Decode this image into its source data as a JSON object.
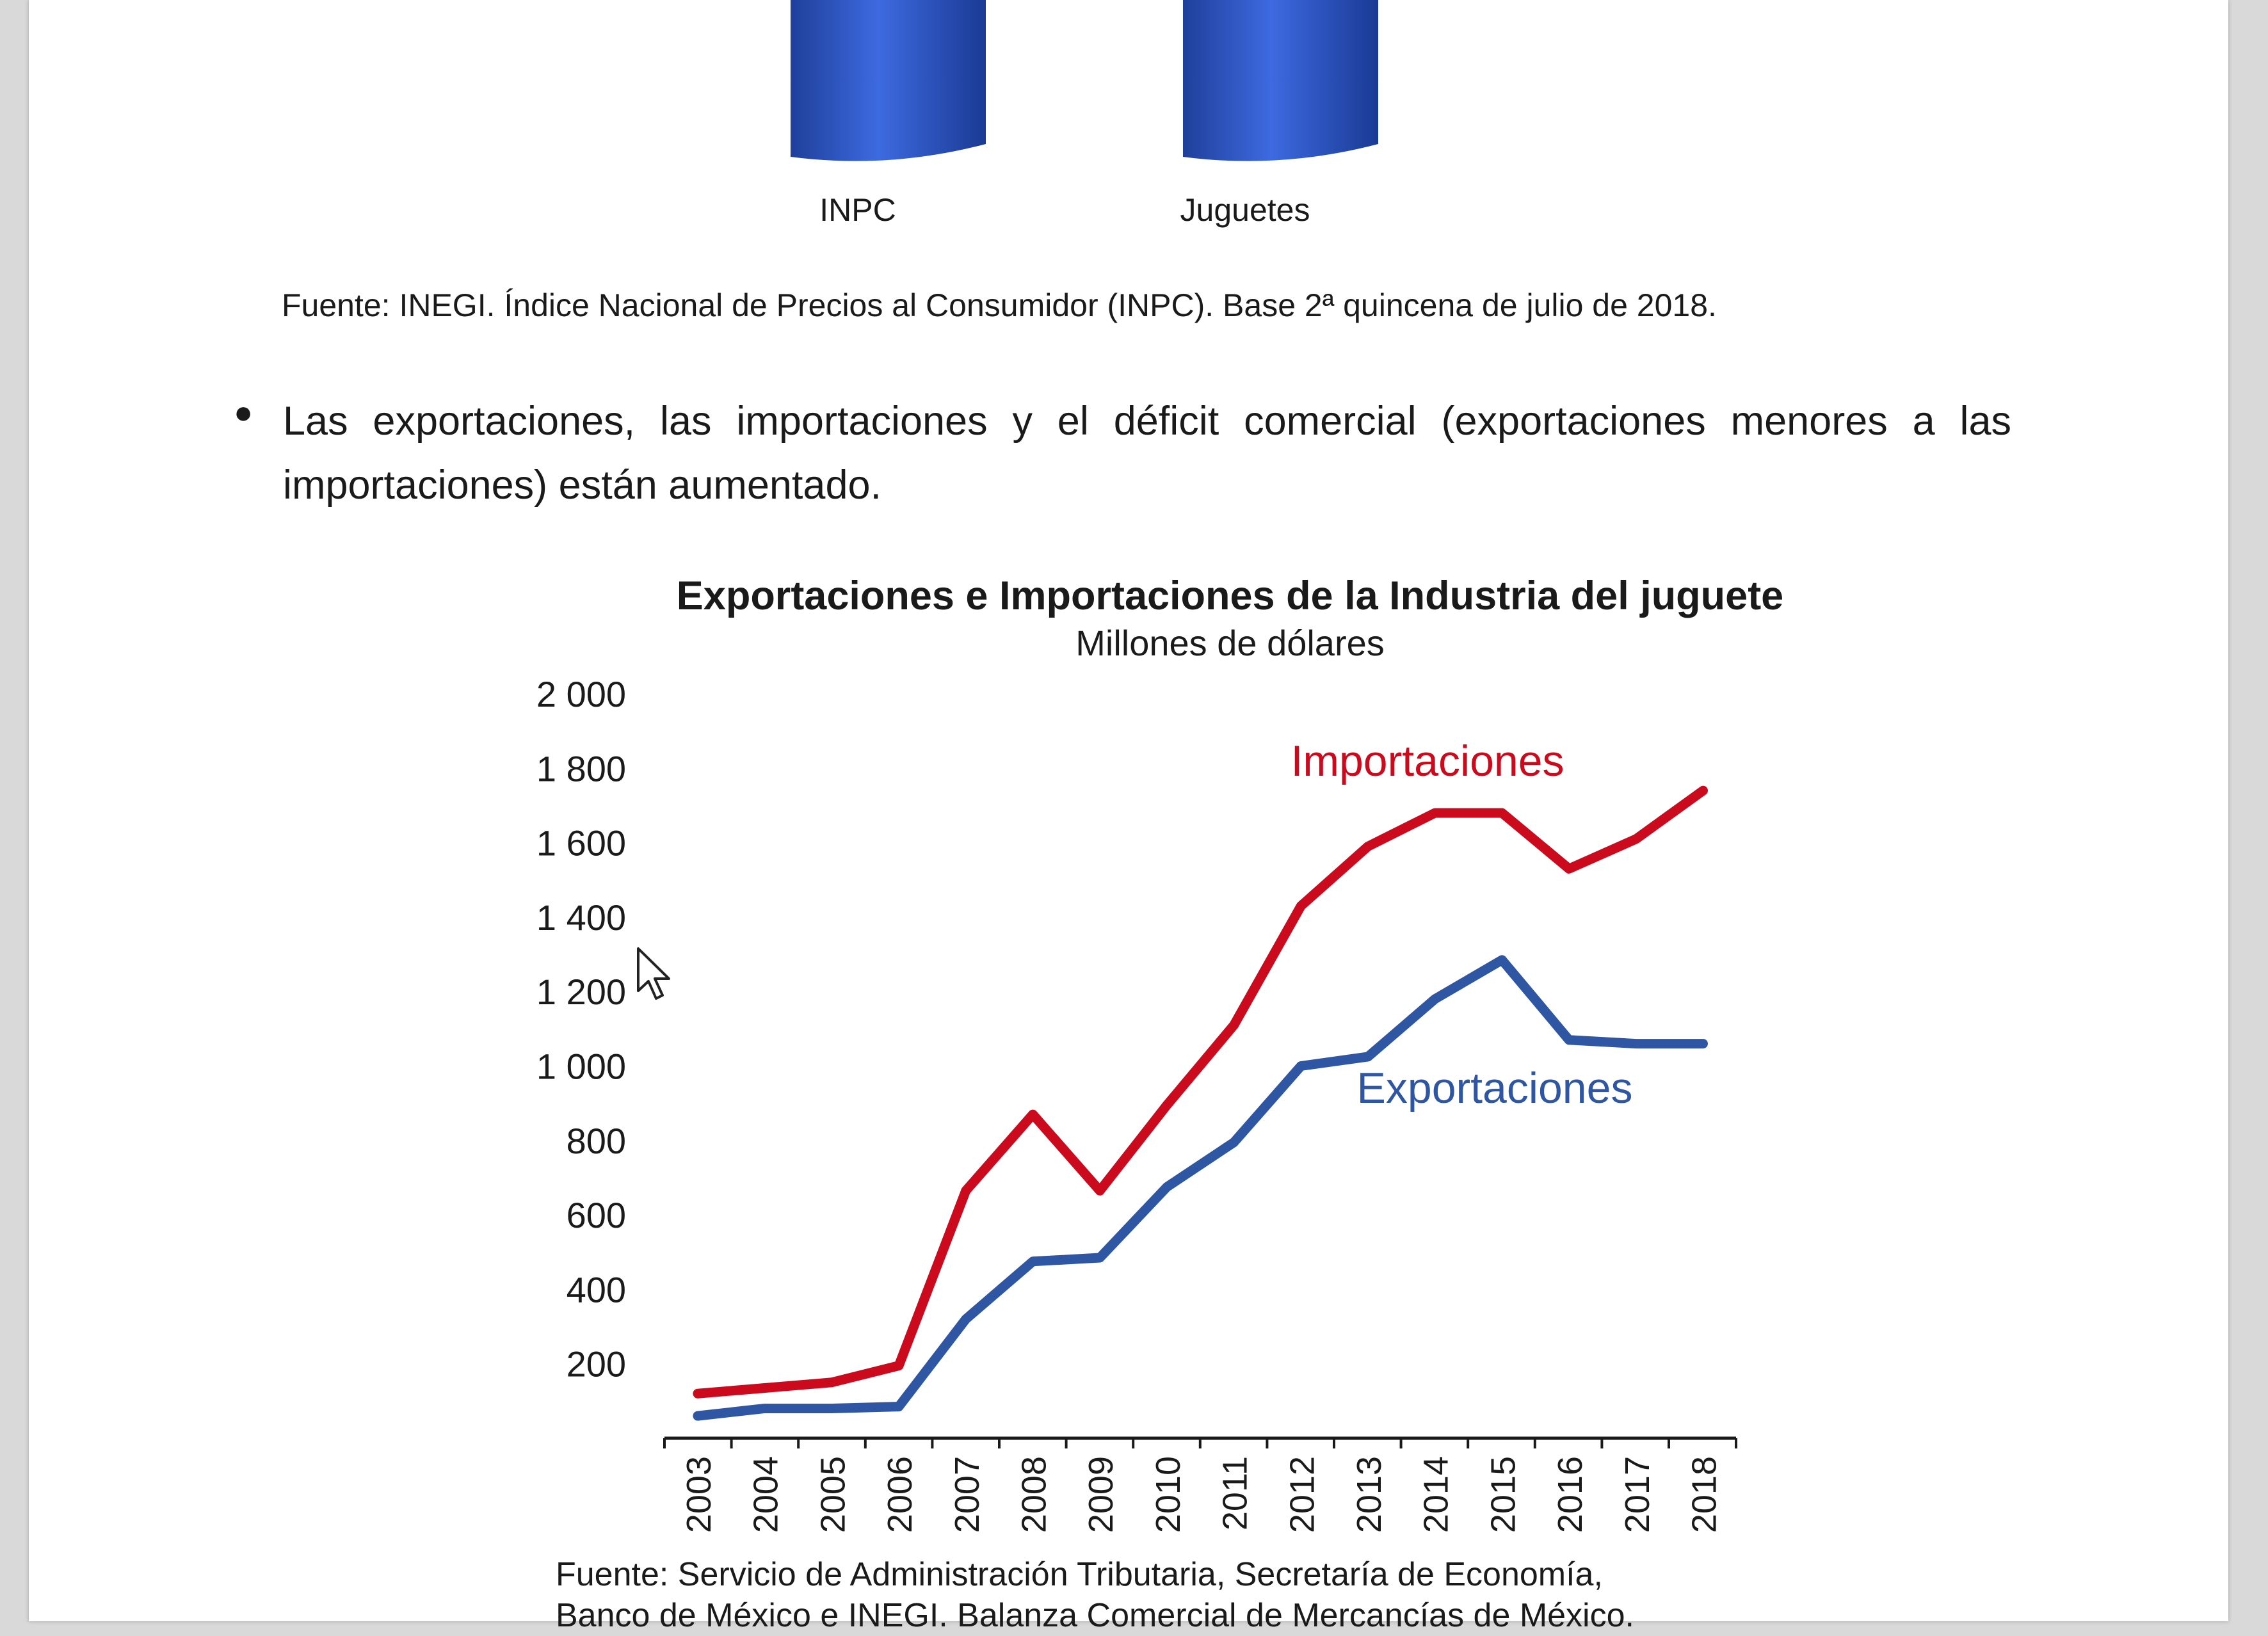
{
  "bar_chart_top": {
    "categories": [
      "INPC",
      "Juguetes"
    ]
  },
  "source_1": "Fuente: INEGI. Índice Nacional de Precios al Consumidor (INPC). Base 2ª quincena de julio de 2018.",
  "bullet_text": "Las exportaciones, las importaciones y el déficit comercial (exportaciones menores a las importaciones) están aumentado.",
  "colors": {
    "importaciones": "#cc0a1e",
    "exportaciones": "#2f56a3",
    "bar": "#2a55c4"
  },
  "chart_data": {
    "type": "line",
    "title": "Exportaciones e Importaciones de la Industria del juguete",
    "subtitle": "Millones de dólares",
    "x": [
      "2003",
      "2004",
      "2005",
      "2006",
      "2007",
      "2008",
      "2009",
      "2010",
      "2011",
      "2012",
      "2013",
      "2014",
      "2015",
      "2016",
      "2017",
      "2018"
    ],
    "yticks": [
      "200",
      "400",
      "600",
      "800",
      "1 000",
      "1 200",
      "1 400",
      "1 600",
      "1 800",
      "2 000"
    ],
    "ylim": [
      0,
      2000
    ],
    "series": [
      {
        "name": "Importaciones",
        "values": [
          120,
          135,
          150,
          195,
          665,
          870,
          665,
          895,
          1110,
          1430,
          1590,
          1680,
          1680,
          1530,
          1610,
          1740
        ]
      },
      {
        "name": "Exportaciones",
        "values": [
          60,
          80,
          80,
          85,
          320,
          475,
          485,
          675,
          795,
          1000,
          1025,
          1180,
          1285,
          1070,
          1060,
          1060
        ]
      }
    ]
  },
  "source_2_line1": "Fuente: Servicio de Administración Tributaria, Secretaría de Economía,",
  "source_2_line2": "Banco de México e INEGI. Balanza Comercial de Mercancías de México."
}
